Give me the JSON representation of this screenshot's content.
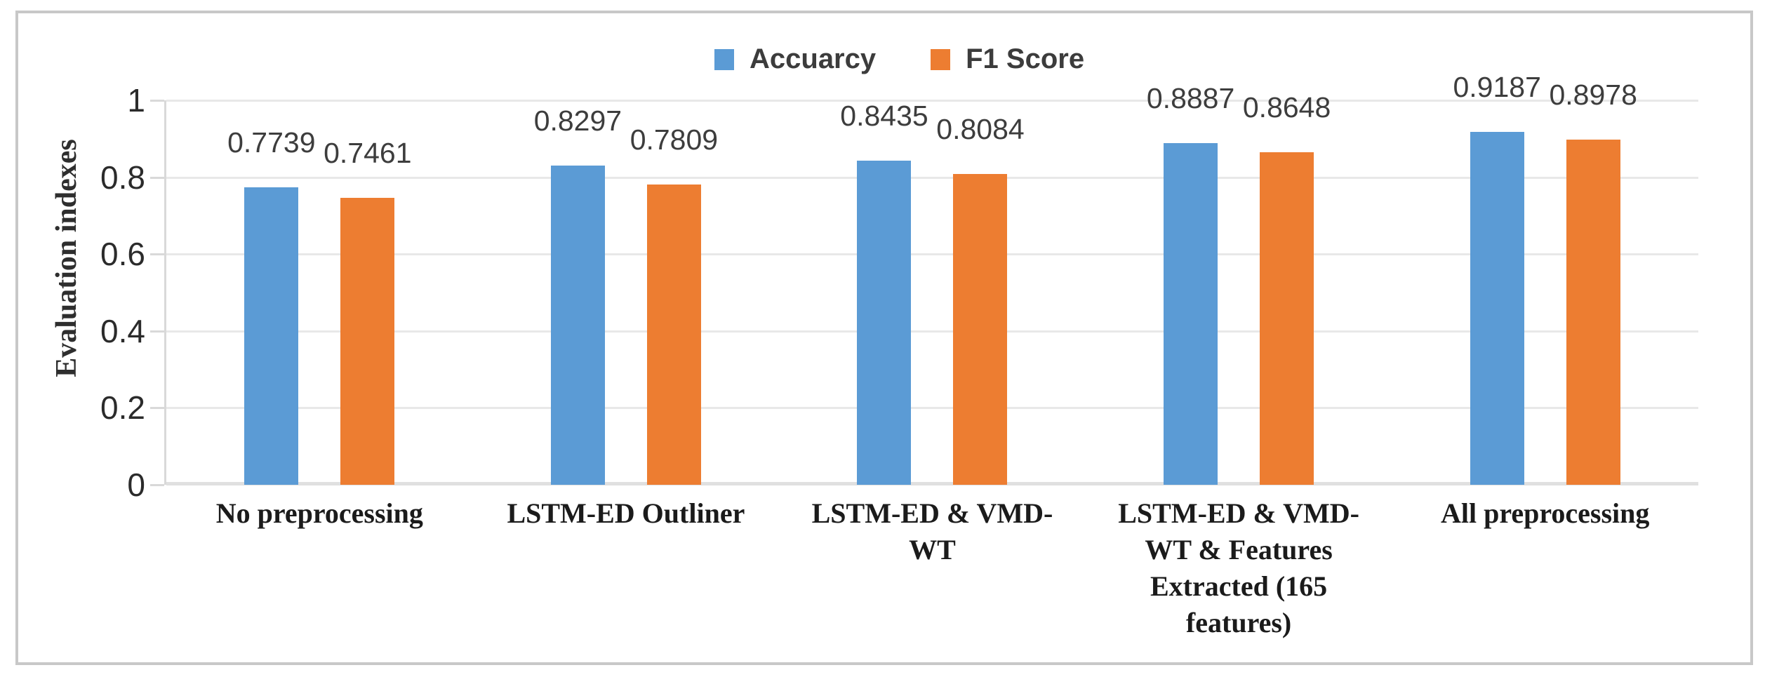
{
  "chart_data": {
    "type": "bar",
    "title": "",
    "categories": [
      "No preprocessing",
      "LSTM-ED Outliner",
      "LSTM-ED & VMD-WT",
      "LSTM-ED & VMD-WT & Features Extracted (165 features)",
      "All preprocessing"
    ],
    "categories_display": [
      "No preprocessing",
      "LSTM-ED Outliner",
      "LSTM-ED & VMD-\nWT",
      "LSTM-ED & VMD-\nWT & Features\nExtracted (165\nfeatures)",
      "All preprocessing"
    ],
    "series": [
      {
        "name": "Accuarcy",
        "color": "#5B9BD5",
        "values": [
          0.7739,
          0.8297,
          0.8435,
          0.8887,
          0.9187
        ],
        "data_labels": [
          "0.7739",
          "0.8297",
          "0.8435",
          "0.8887",
          "0.9187"
        ]
      },
      {
        "name": "F1 Score",
        "color": "#ED7D31",
        "values": [
          0.7461,
          0.7809,
          0.8084,
          0.8648,
          0.8978
        ],
        "data_labels": [
          "0.7461",
          "0.7809",
          "0.8084",
          "0.8648",
          "0.8978"
        ]
      }
    ],
    "xlabel": "",
    "ylabel": "Evaluation indexes",
    "ylim": [
      0,
      1
    ],
    "yticks": [
      {
        "value": 0,
        "label": "0"
      },
      {
        "value": 0.2,
        "label": "0.2"
      },
      {
        "value": 0.4,
        "label": "0.4"
      },
      {
        "value": 0.6,
        "label": "0.6"
      },
      {
        "value": 0.8,
        "label": "0.8"
      },
      {
        "value": 1,
        "label": "1"
      }
    ],
    "grid": true,
    "legend_position": "top-center",
    "colors": {
      "gridline": "#e8e8e8",
      "axis_line": "#d9d9d9",
      "frame_border": "#c8c8c8",
      "label_text": "#3d3d3d"
    }
  }
}
